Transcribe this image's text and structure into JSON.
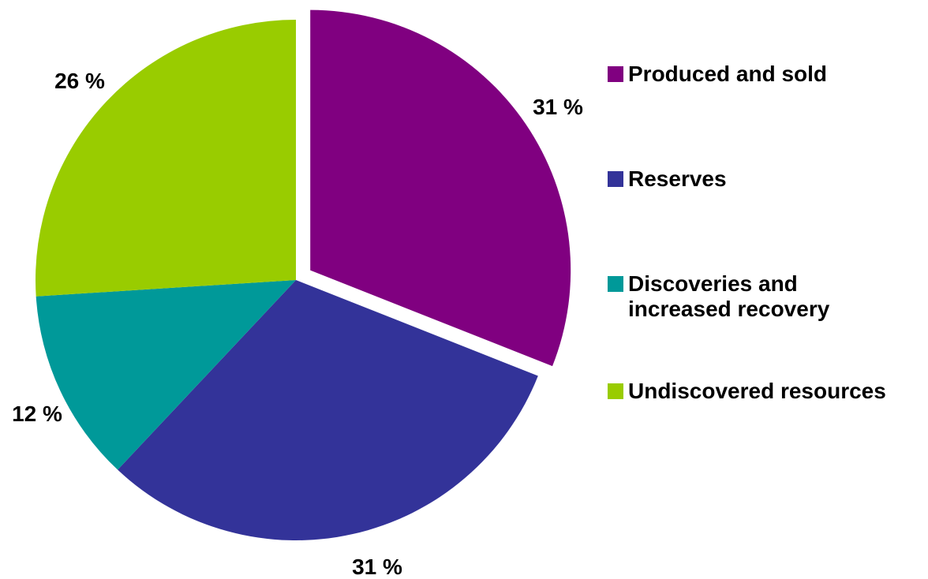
{
  "chart_data": {
    "type": "pie",
    "title": "",
    "unit": "%",
    "slices": [
      {
        "name": "Produced and sold",
        "value": 31,
        "label": "31 %",
        "color": "#800080",
        "exploded": true
      },
      {
        "name": "Reserves",
        "value": 31,
        "label": "31 %",
        "color": "#333399",
        "exploded": false
      },
      {
        "name": "Discoveries and\nincreased recovery",
        "value": 12,
        "label": "12 %",
        "color": "#009999",
        "exploded": false
      },
      {
        "name": "Undiscovered resources",
        "value": 26,
        "label": "26 %",
        "color": "#99CC00",
        "exploded": false
      }
    ],
    "start": "12 o'clock",
    "direction": "clockwise",
    "legend_position": "right"
  }
}
